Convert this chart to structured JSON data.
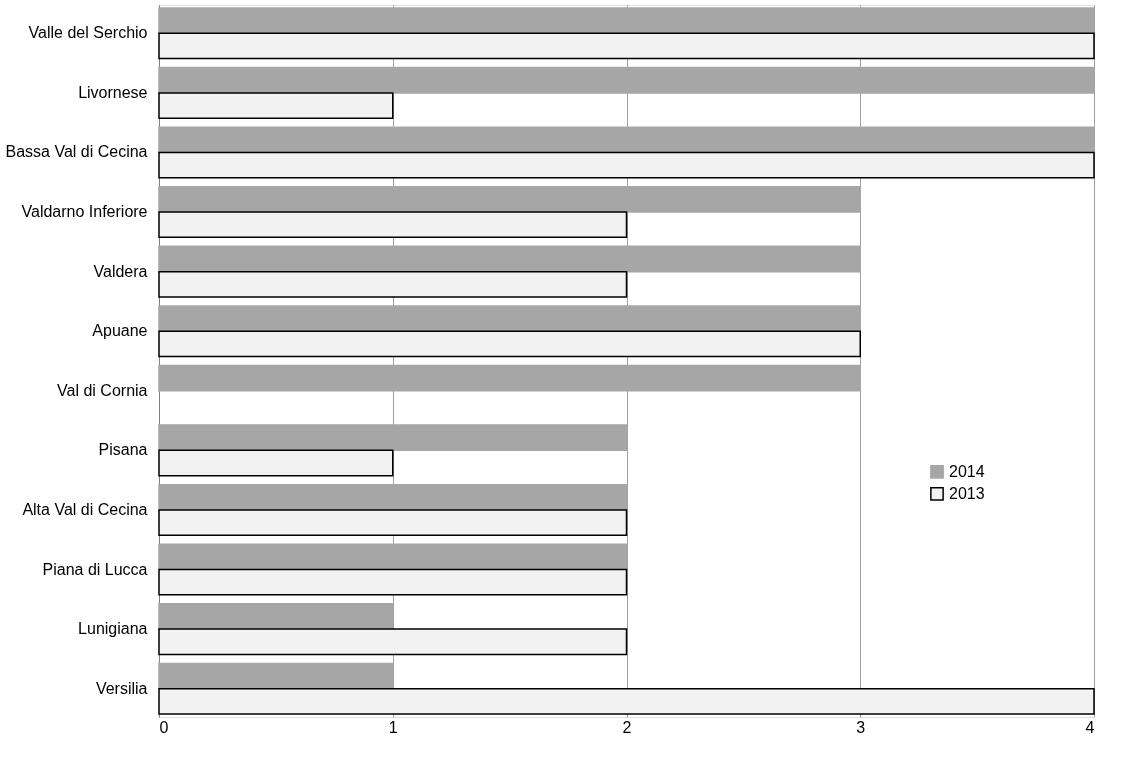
{
  "chart_data": {
    "type": "bar",
    "orientation": "horizontal",
    "categories": [
      "Valle del Serchio",
      "Livornese",
      "Bassa Val di Cecina",
      "Valdarno Inferiore",
      "Valdera",
      "Apuane",
      "Val di Cornia",
      "Pisana",
      "Alta Val di Cecina",
      "Piana di Lucca",
      "Lunigiana",
      "Versilia"
    ],
    "series": [
      {
        "name": "2014",
        "color": "#a6a6a6",
        "values": [
          4,
          4,
          4,
          3,
          3,
          3,
          3,
          2,
          2,
          2,
          1,
          1
        ]
      },
      {
        "name": "2013",
        "color": "#f2f2f2",
        "values": [
          4,
          1,
          4,
          2,
          2,
          3,
          0,
          1,
          2,
          2,
          2,
          4
        ]
      }
    ],
    "xlim": [
      0,
      4
    ],
    "xticks": [
      0,
      1,
      2,
      3,
      4
    ],
    "grid": "x",
    "legend": "right"
  }
}
